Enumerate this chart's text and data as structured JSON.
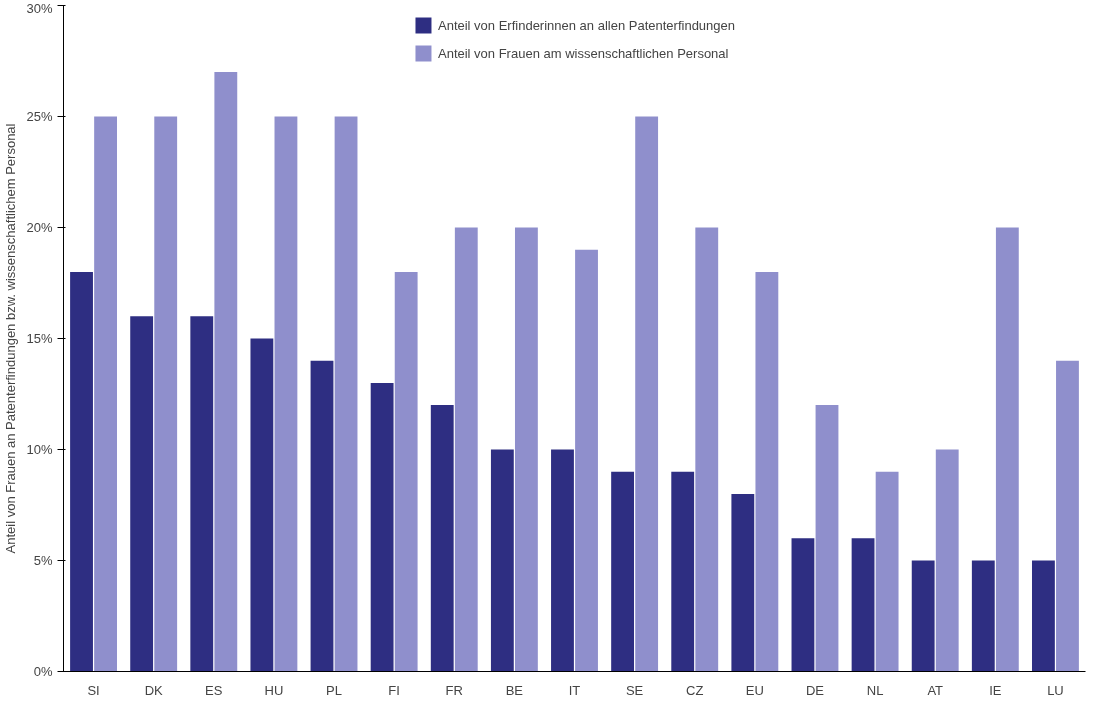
{
  "chart_data": {
    "type": "bar",
    "ylabel": "Anteil von Frauen an Patenterfindungen bzw. wissenschaftlichem Personal",
    "categories": [
      "SI",
      "DK",
      "ES",
      "HU",
      "PL",
      "FI",
      "FR",
      "BE",
      "IT",
      "SE",
      "CZ",
      "EU",
      "DE",
      "NL",
      "AT",
      "IE",
      "LU"
    ],
    "series": [
      {
        "name": "Anteil von Erfinderinnen an allen Patenterfindungen",
        "color": "#2e2e82",
        "values": [
          18,
          16,
          16,
          15,
          14,
          13,
          12,
          10,
          10,
          9,
          9,
          8,
          6,
          6,
          5,
          5,
          5
        ]
      },
      {
        "name": "Anteil von Frauen am wissenschaftlichen Personal",
        "color": "#8f8fcc",
        "values": [
          25,
          25,
          27,
          25,
          25,
          18,
          20,
          20,
          19,
          25,
          20,
          18,
          12,
          9,
          10,
          20,
          14
        ]
      }
    ],
    "ylim": [
      0,
      30
    ],
    "yticks": [
      {
        "value": 0,
        "label": "0%"
      },
      {
        "value": 5,
        "label": "5%"
      },
      {
        "value": 10,
        "label": "10%"
      },
      {
        "value": 15,
        "label": "15%"
      },
      {
        "value": 20,
        "label": "20%"
      },
      {
        "value": 25,
        "label": "25%"
      },
      {
        "value": 30,
        "label": "30%"
      }
    ],
    "grid": false,
    "legend": "top"
  }
}
